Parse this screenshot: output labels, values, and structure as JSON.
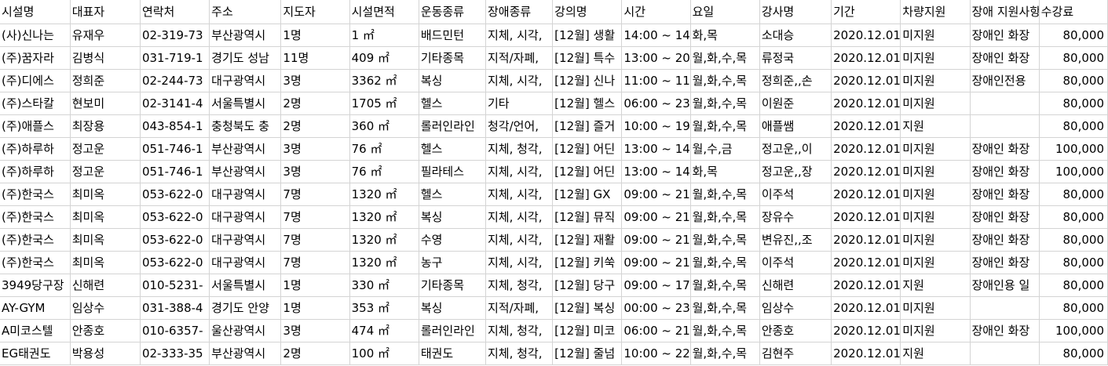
{
  "sheet": {
    "headers": [
      "시설명",
      "대표자",
      "연락처",
      "주소",
      "지도자",
      "시설면적",
      "운동종류",
      "장애종류",
      "강의명",
      "시간",
      "요일",
      "강사명",
      "기간",
      "차량지원",
      "장애 지원사항",
      "수강료"
    ],
    "rows": [
      [
        "(사)신나는",
        "유재우",
        "02-319-73",
        "부산광역시",
        "1명",
        "1 ㎡",
        "배드민턴",
        "지체, 시각,",
        "[12월] 생활",
        "14:00 ~ 14",
        "화,목",
        "소대승",
        "2020.12.01",
        "미지원",
        "장애인 화장",
        "80,000"
      ],
      [
        "(주)꿈자라",
        "김병식",
        "031-719-1",
        "경기도 성남",
        "11명",
        "409 ㎡",
        "기타종목",
        "지적/자폐,",
        "[12월] 특수",
        "13:00 ~ 20",
        "월,화,수,목",
        "류정국",
        "2020.12.01",
        "미지원",
        "장애인 화장",
        "80,000"
      ],
      [
        "(주)디에스",
        "정희준",
        "02-244-73",
        "대구광역시",
        "3명",
        "3362 ㎡",
        "복싱",
        "지체, 시각,",
        "[12월] 신나",
        "11:00 ~ 11",
        "월,화,수,목",
        "정희준,,손",
        "2020.12.01",
        "미지원",
        "장애인전용",
        "80,000"
      ],
      [
        "(주)스타칼",
        "현보미",
        "02-3141-4",
        "서울특별시",
        "2명",
        "1705 ㎡",
        "헬스",
        "기타",
        "[12월] 헬스",
        "06:00 ~ 23",
        "월,화,수,목",
        "이원준",
        "2020.12.01",
        "미지원",
        "",
        "80,000"
      ],
      [
        "(주)애플스",
        "최장용",
        "043-854-1",
        "충청북도 충",
        "2명",
        "360 ㎡",
        "롤러인라인",
        "청각/언어,",
        "[12월] 즐거",
        "10:00 ~ 19",
        "월,화,수,목",
        "애플쌤",
        "2020.12.01",
        "지원",
        "",
        "80,000"
      ],
      [
        "(주)하루하",
        "정고운",
        "051-746-1",
        "부산광역시",
        "3명",
        "76 ㎡",
        "헬스",
        "지체, 청각,",
        "[12월] 어딘",
        "13:00 ~ 14",
        "월,수,금",
        "정고운,,이",
        "2020.12.01",
        "미지원",
        "장애인 화장",
        "100,000"
      ],
      [
        "(주)하루하",
        "정고운",
        "051-746-1",
        "부산광역시",
        "3명",
        "76 ㎡",
        "필라테스",
        "지체, 시각,",
        "[12월] 어딘",
        "13:00 ~ 14",
        "화,목",
        "정고운,,장",
        "2020.12.01",
        "미지원",
        "장애인 화장",
        "100,000"
      ],
      [
        "(주)한국스",
        "최미옥",
        "053-622-0",
        "대구광역시",
        "7명",
        "1320 ㎡",
        "헬스",
        "지체, 시각,",
        "[12월] GX",
        "09:00 ~ 21",
        "월,화,수,목",
        "이주석",
        "2020.12.01",
        "미지원",
        "장애인 화장",
        "80,000"
      ],
      [
        "(주)한국스",
        "최미옥",
        "053-622-0",
        "대구광역시",
        "7명",
        "1320 ㎡",
        "복싱",
        "지체, 시각,",
        "[12월] 뮤직",
        "09:00 ~ 21",
        "월,화,수,목",
        "장유수",
        "2020.12.01",
        "미지원",
        "장애인 화장",
        "80,000"
      ],
      [
        "(주)한국스",
        "최미옥",
        "053-622-0",
        "대구광역시",
        "7명",
        "1320 ㎡",
        "수영",
        "지체, 시각,",
        "[12월] 재활",
        "09:00 ~ 21",
        "월,화,수,목",
        "변유진,,조",
        "2020.12.01",
        "미지원",
        "장애인 화장",
        "80,000"
      ],
      [
        "(주)한국스",
        "최미옥",
        "053-622-0",
        "대구광역시",
        "7명",
        "1320 ㎡",
        "농구",
        "지체, 시각,",
        "[12월] 키쑥",
        "09:00 ~ 21",
        "월,화,수,목",
        "이주석",
        "2020.12.01",
        "미지원",
        "장애인 화장",
        "80,000"
      ],
      [
        "3949당구장",
        "신해련",
        "010-5231-",
        "서울특별시",
        "1명",
        "330 ㎡",
        "기타종목",
        "지체, 청각,",
        "[12월] 당구",
        "09:00 ~ 17",
        "월,화,수,목",
        "신해련",
        "2020.12.01",
        "지원",
        "장애인용 일",
        "80,000"
      ],
      [
        "AY-GYM",
        "임상수",
        "031-388-4",
        "경기도 안양",
        "1명",
        "353 ㎡",
        "복싱",
        "지적/자폐,",
        "[12월] 복싱",
        "00:00 ~ 23",
        "월,화,수,목",
        "임상수",
        "2020.12.01",
        "미지원",
        "",
        "80,000"
      ],
      [
        "A미코스텔",
        "안종호",
        "010-6357-",
        "울산광역시",
        "3명",
        "474 ㎡",
        "롤러인라인",
        "지체, 청각,",
        "[12월] 미코",
        "06:00 ~ 21",
        "월,화,수,목",
        "안종호",
        "2020.12.01",
        "미지원",
        "장애인 화장",
        "100,000"
      ],
      [
        "EG태권도",
        "박용성",
        "02-333-35",
        "부산광역시",
        "2명",
        "100 ㎡",
        "태권도",
        "지체, 청각,",
        "[12월] 줄넘",
        "10:00 ~ 22",
        "월,화,수,목",
        "김현주",
        "2020.12.01",
        "지원",
        "",
        "80,000"
      ]
    ]
  }
}
